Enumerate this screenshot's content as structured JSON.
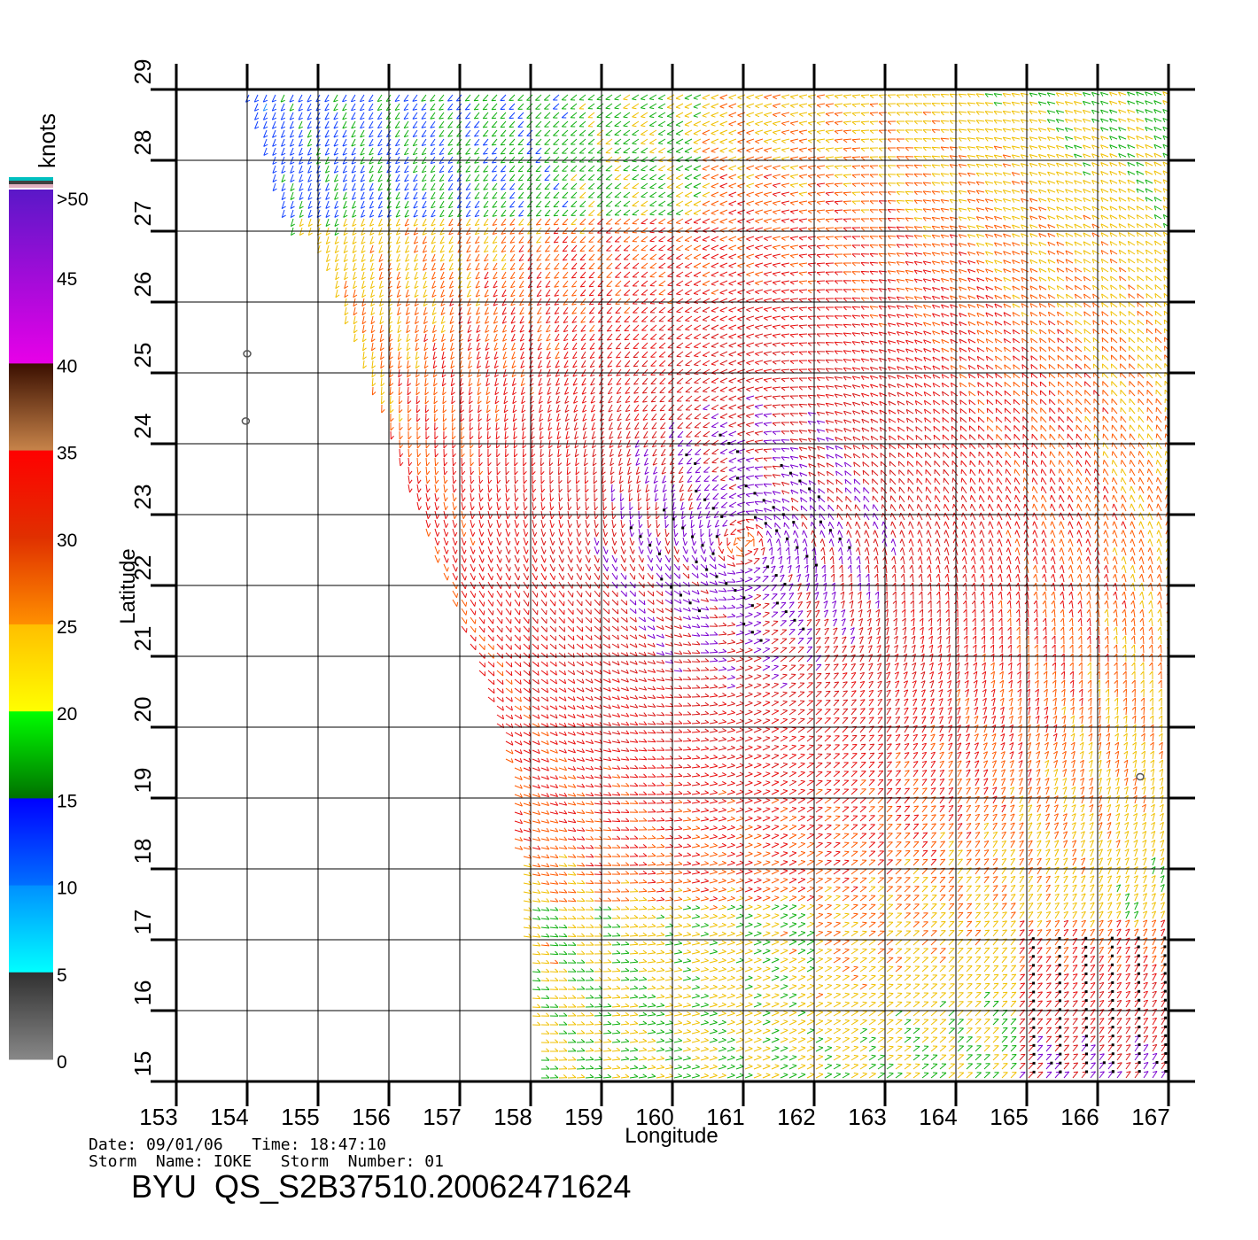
{
  "chart_data": {
    "type": "wind-vector map",
    "xlabel": "Longitude",
    "ylabel": "Latitude",
    "xlim": [
      153,
      167
    ],
    "ylim": [
      15,
      29
    ],
    "x_ticks": [
      "153",
      "154",
      "155",
      "156",
      "157",
      "158",
      "159",
      "160",
      "161",
      "162",
      "163",
      "164",
      "165",
      "166",
      "167"
    ],
    "y_ticks": [
      "15",
      "16",
      "17",
      "18",
      "19",
      "20",
      "21",
      "22",
      "23",
      "24",
      "25",
      "26",
      "27",
      "28",
      "29"
    ],
    "grid": true,
    "colorbar": {
      "title": "knots",
      "labels": [
        ">50",
        "45",
        "40",
        "35",
        "30",
        "25",
        "20",
        "15",
        "10",
        "5",
        "0"
      ],
      "bands": [
        {
          "from": 50,
          "to": 40,
          "top": "#5a18c8",
          "bottom": "#e800e8"
        },
        {
          "from": 40,
          "to": 35,
          "top": "#3a0f00",
          "bottom": "#c8844a"
        },
        {
          "from": 35,
          "to": 30,
          "top": "#ff0000",
          "bottom": "#e03000"
        },
        {
          "from": 30,
          "to": 25,
          "top": "#e03000",
          "bottom": "#ff9000"
        },
        {
          "from": 25,
          "to": 20,
          "top": "#ffbf00",
          "bottom": "#ffff00"
        },
        {
          "from": 20,
          "to": 15,
          "top": "#00ff00",
          "bottom": "#007000"
        },
        {
          "from": 15,
          "to": 10,
          "top": "#0000ff",
          "bottom": "#0070ff"
        },
        {
          "from": 10,
          "to": 5,
          "top": "#0090ff",
          "bottom": "#00ffff"
        },
        {
          "from": 5,
          "to": 0,
          "top": "#303030",
          "bottom": "#888888"
        }
      ],
      "top_strip_colors": [
        "#00c0c0",
        "#404040",
        "#e0b0c0"
      ]
    },
    "islands": [
      [
        154.0,
        25.27
      ],
      [
        153.98,
        24.32
      ],
      [
        166.6,
        19.3
      ]
    ],
    "storm_center": [
      161.0,
      22.6
    ],
    "date_line": "Date: 09/01/06   Time: 18:47:10",
    "storm_line": "Storm  Name: IOKE   Storm  Number: 01",
    "file_title": "BYU  QS_S2B37510.20062471624"
  }
}
